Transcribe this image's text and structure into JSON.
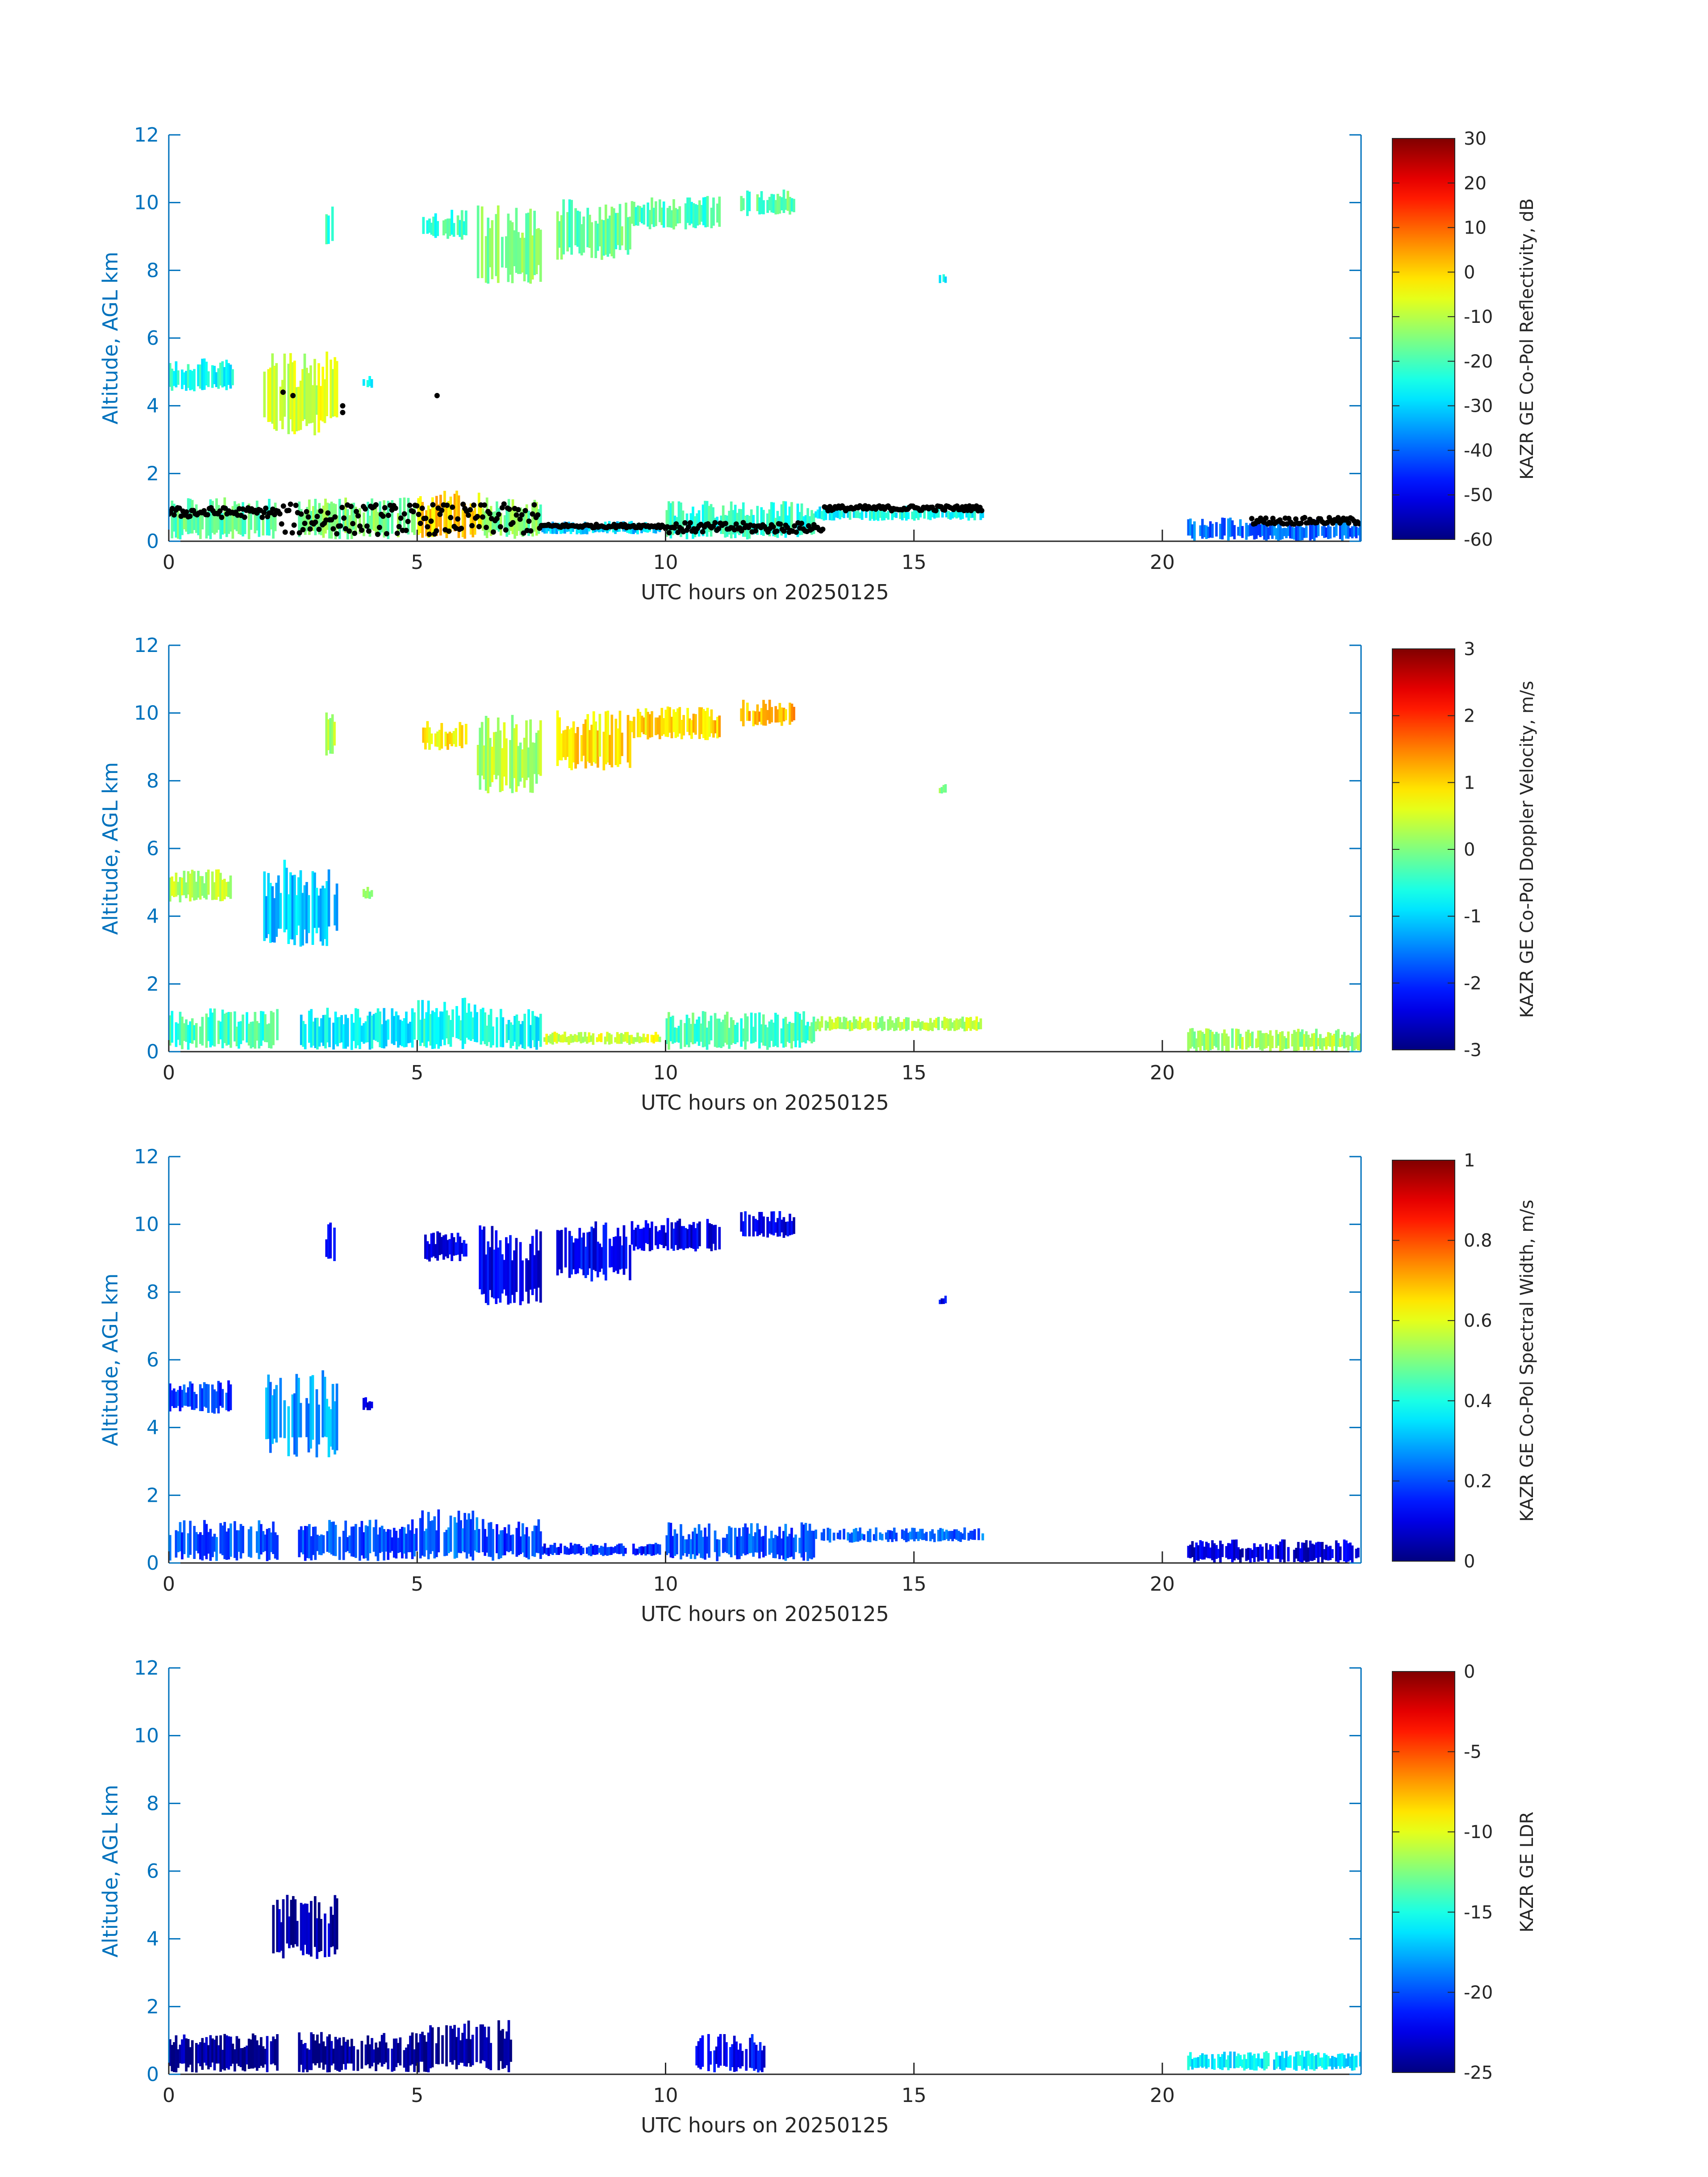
{
  "figure": {
    "axis_color": "#0072BD",
    "colormap": "jet"
  },
  "chart_data": [
    {
      "type": "heatmap",
      "xlabel": "UTC hours on 20250125",
      "ylabel": "Altitude, AGL km",
      "xlim": [
        0,
        24
      ],
      "ylim": [
        0,
        12
      ],
      "xticks": [
        0,
        5,
        10,
        15,
        20
      ],
      "yticks": [
        0,
        2,
        4,
        6,
        8,
        10,
        12
      ],
      "colorbar": {
        "label": "KAZR GE Co-Pol Reflectivity, dB",
        "range": [
          -60,
          30
        ],
        "ticks": [
          30,
          20,
          10,
          0,
          -10,
          -20,
          -30,
          -40,
          -50,
          -60
        ]
      },
      "overlay": "cloud-base-markers",
      "cloud_regions": [
        {
          "x0": 0.0,
          "x1": 1.3,
          "y0": 4.4,
          "y1": 5.4,
          "v": -25
        },
        {
          "x0": 1.9,
          "x1": 3.4,
          "y0": 3.1,
          "y1": 5.7,
          "v": -8
        },
        {
          "x0": 3.15,
          "x1": 3.35,
          "y0": 8.7,
          "y1": 10.1,
          "v": -22
        },
        {
          "x0": 3.9,
          "x1": 4.1,
          "y0": 4.5,
          "y1": 4.9,
          "v": -25
        },
        {
          "x0": 5.1,
          "x1": 6.0,
          "y0": 8.9,
          "y1": 9.8,
          "v": -22
        },
        {
          "x0": 6.2,
          "x1": 7.5,
          "y0": 7.6,
          "y1": 10.0,
          "v": -15
        },
        {
          "x0": 7.8,
          "x1": 9.3,
          "y0": 8.3,
          "y1": 10.1,
          "v": -18
        },
        {
          "x0": 9.3,
          "x1": 11.1,
          "y0": 9.2,
          "y1": 10.2,
          "v": -20
        },
        {
          "x0": 11.5,
          "x1": 12.6,
          "y0": 9.6,
          "y1": 10.4,
          "v": -18
        },
        {
          "x0": 15.5,
          "x1": 15.65,
          "y0": 7.6,
          "y1": 7.9,
          "v": -25
        },
        {
          "x0": 0.0,
          "x1": 2.2,
          "y0": 0.05,
          "y1": 1.3,
          "v": -18
        },
        {
          "x0": 2.6,
          "x1": 5.0,
          "y0": 0.05,
          "y1": 1.3,
          "v": -15
        },
        {
          "x0": 5.0,
          "x1": 6.3,
          "y0": 0.05,
          "y1": 1.6,
          "v": 0
        },
        {
          "x0": 6.3,
          "x1": 7.5,
          "y0": 0.05,
          "y1": 1.3,
          "v": -15
        },
        {
          "x0": 7.5,
          "x1": 9.9,
          "y0": 0.2,
          "y1": 0.6,
          "v": -30
        },
        {
          "x0": 10.0,
          "x1": 13.0,
          "y0": 0.05,
          "y1": 1.2,
          "v": -22
        },
        {
          "x0": 13.0,
          "x1": 16.4,
          "y0": 0.6,
          "y1": 1.05,
          "v": -25
        },
        {
          "x0": 20.5,
          "x1": 24.0,
          "y0": 0.0,
          "y1": 0.7,
          "v": -40
        }
      ]
    },
    {
      "type": "heatmap",
      "xlabel": "UTC hours on 20250125",
      "ylabel": "Altitude, AGL km",
      "xlim": [
        0,
        24
      ],
      "ylim": [
        0,
        12
      ],
      "xticks": [
        0,
        5,
        10,
        15,
        20
      ],
      "yticks": [
        0,
        2,
        4,
        6,
        8,
        10,
        12
      ],
      "colorbar": {
        "label": "KAZR GE Co-Pol Doppler Velocity, m/s",
        "range": [
          -3,
          3
        ],
        "ticks": [
          3,
          2,
          1,
          0,
          -1,
          -2,
          -3
        ]
      },
      "cloud_regions": [
        {
          "x0": 0.0,
          "x1": 1.3,
          "y0": 4.4,
          "y1": 5.4,
          "v": 0.3
        },
        {
          "x0": 1.9,
          "x1": 3.4,
          "y0": 3.1,
          "y1": 5.7,
          "v": -1.1
        },
        {
          "x0": 3.15,
          "x1": 3.35,
          "y0": 8.7,
          "y1": 10.1,
          "v": 0.2
        },
        {
          "x0": 3.9,
          "x1": 4.1,
          "y0": 4.5,
          "y1": 4.9,
          "v": 0.0
        },
        {
          "x0": 5.1,
          "x1": 6.0,
          "y0": 8.9,
          "y1": 9.8,
          "v": 0.8
        },
        {
          "x0": 6.2,
          "x1": 7.5,
          "y0": 7.6,
          "y1": 10.0,
          "v": 0.3
        },
        {
          "x0": 7.8,
          "x1": 9.3,
          "y0": 8.3,
          "y1": 10.1,
          "v": 0.9
        },
        {
          "x0": 9.3,
          "x1": 11.1,
          "y0": 9.2,
          "y1": 10.2,
          "v": 1.0
        },
        {
          "x0": 11.5,
          "x1": 12.6,
          "y0": 9.6,
          "y1": 10.4,
          "v": 1.2
        },
        {
          "x0": 15.5,
          "x1": 15.65,
          "y0": 7.6,
          "y1": 7.9,
          "v": 0.2
        },
        {
          "x0": 0.0,
          "x1": 2.2,
          "y0": 0.05,
          "y1": 1.3,
          "v": -0.4
        },
        {
          "x0": 2.6,
          "x1": 5.0,
          "y0": 0.05,
          "y1": 1.3,
          "v": -0.8
        },
        {
          "x0": 5.0,
          "x1": 6.3,
          "y0": 0.05,
          "y1": 1.6,
          "v": -0.6
        },
        {
          "x0": 6.3,
          "x1": 7.5,
          "y0": 0.05,
          "y1": 1.3,
          "v": -0.7
        },
        {
          "x0": 7.5,
          "x1": 9.9,
          "y0": 0.2,
          "y1": 0.6,
          "v": 0.5
        },
        {
          "x0": 10.0,
          "x1": 13.0,
          "y0": 0.05,
          "y1": 1.2,
          "v": -0.3
        },
        {
          "x0": 13.0,
          "x1": 16.4,
          "y0": 0.6,
          "y1": 1.05,
          "v": 0.3
        },
        {
          "x0": 20.5,
          "x1": 24.0,
          "y0": 0.0,
          "y1": 0.7,
          "v": 0.2
        }
      ]
    },
    {
      "type": "heatmap",
      "xlabel": "UTC hours on 20250125",
      "ylabel": "Altitude, AGL km",
      "xlim": [
        0,
        24
      ],
      "ylim": [
        0,
        12
      ],
      "xticks": [
        0,
        5,
        10,
        15,
        20
      ],
      "yticks": [
        0,
        2,
        4,
        6,
        8,
        10,
        12
      ],
      "colorbar": {
        "label": "KAZR GE Co-Pol Spectral Width, m/s",
        "range": [
          0,
          1
        ],
        "ticks": [
          1,
          0.8,
          0.6,
          0.4,
          0.2,
          0
        ]
      },
      "cloud_regions": [
        {
          "x0": 0.0,
          "x1": 1.3,
          "y0": 4.4,
          "y1": 5.4,
          "v": 0.18
        },
        {
          "x0": 1.9,
          "x1": 3.4,
          "y0": 3.1,
          "y1": 5.7,
          "v": 0.28
        },
        {
          "x0": 3.15,
          "x1": 3.35,
          "y0": 8.7,
          "y1": 10.1,
          "v": 0.12
        },
        {
          "x0": 3.9,
          "x1": 4.1,
          "y0": 4.5,
          "y1": 4.9,
          "v": 0.12
        },
        {
          "x0": 5.1,
          "x1": 6.0,
          "y0": 8.9,
          "y1": 9.8,
          "v": 0.1
        },
        {
          "x0": 6.2,
          "x1": 7.5,
          "y0": 7.6,
          "y1": 10.0,
          "v": 0.1
        },
        {
          "x0": 7.8,
          "x1": 9.3,
          "y0": 8.3,
          "y1": 10.1,
          "v": 0.12
        },
        {
          "x0": 9.3,
          "x1": 11.1,
          "y0": 9.2,
          "y1": 10.2,
          "v": 0.1
        },
        {
          "x0": 11.5,
          "x1": 12.6,
          "y0": 9.6,
          "y1": 10.4,
          "v": 0.1
        },
        {
          "x0": 15.5,
          "x1": 15.65,
          "y0": 7.6,
          "y1": 7.9,
          "v": 0.1
        },
        {
          "x0": 0.0,
          "x1": 2.2,
          "y0": 0.05,
          "y1": 1.3,
          "v": 0.2
        },
        {
          "x0": 2.6,
          "x1": 5.0,
          "y0": 0.05,
          "y1": 1.3,
          "v": 0.2
        },
        {
          "x0": 5.0,
          "x1": 6.3,
          "y0": 0.05,
          "y1": 1.6,
          "v": 0.22
        },
        {
          "x0": 6.3,
          "x1": 7.5,
          "y0": 0.05,
          "y1": 1.3,
          "v": 0.18
        },
        {
          "x0": 7.5,
          "x1": 9.9,
          "y0": 0.2,
          "y1": 0.6,
          "v": 0.15
        },
        {
          "x0": 10.0,
          "x1": 13.0,
          "y0": 0.05,
          "y1": 1.2,
          "v": 0.2
        },
        {
          "x0": 13.0,
          "x1": 16.4,
          "y0": 0.6,
          "y1": 1.05,
          "v": 0.22
        },
        {
          "x0": 20.5,
          "x1": 24.0,
          "y0": 0.0,
          "y1": 0.7,
          "v": 0.08
        }
      ]
    },
    {
      "type": "heatmap",
      "xlabel": "UTC hours on 20250125",
      "ylabel": "Altitude, AGL km",
      "xlim": [
        0,
        24
      ],
      "ylim": [
        0,
        12
      ],
      "xticks": [
        0,
        5,
        10,
        15,
        20
      ],
      "yticks": [
        0,
        2,
        4,
        6,
        8,
        10,
        12
      ],
      "colorbar": {
        "label": "KAZR GE LDR",
        "range": [
          -25,
          0
        ],
        "ticks": [
          0,
          -5,
          -10,
          -15,
          -20,
          -25
        ]
      },
      "cloud_regions": [
        {
          "x0": 2.0,
          "x1": 3.4,
          "y0": 3.4,
          "y1": 5.3,
          "v": -24
        },
        {
          "x0": 0.0,
          "x1": 2.2,
          "y0": 0.05,
          "y1": 1.25,
          "v": -24.5
        },
        {
          "x0": 2.6,
          "x1": 5.0,
          "y0": 0.05,
          "y1": 1.25,
          "v": -24.5
        },
        {
          "x0": 5.0,
          "x1": 6.9,
          "y0": 0.05,
          "y1": 1.6,
          "v": -24.5
        },
        {
          "x0": 10.6,
          "x1": 12.0,
          "y0": 0.05,
          "y1": 1.2,
          "v": -22
        },
        {
          "x0": 20.5,
          "x1": 24.0,
          "y0": 0.1,
          "y1": 0.7,
          "v": -16
        }
      ]
    }
  ]
}
